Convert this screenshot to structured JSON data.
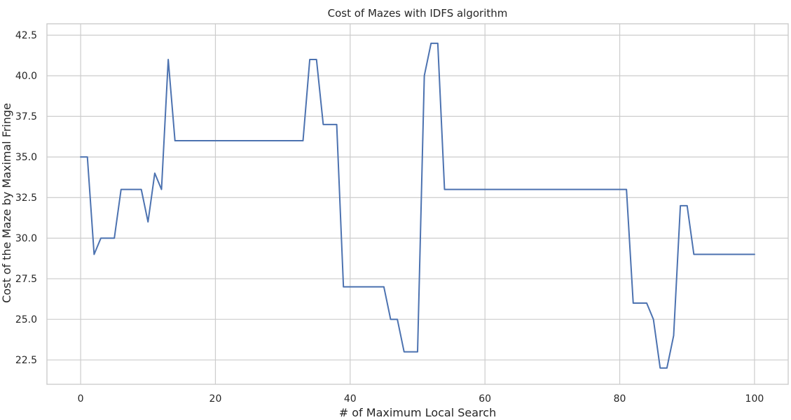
{
  "chart_data": {
    "type": "line",
    "title": "Cost of Mazes with IDFS algorithm",
    "xlabel": "# of Maximum Local Search",
    "ylabel": "Cost of the Maze by Maximal Fringe",
    "xlim": [
      -5,
      105
    ],
    "ylim": [
      21.0,
      43.2
    ],
    "xticks": [
      0,
      20,
      40,
      60,
      80,
      100
    ],
    "xtick_labels": [
      "0",
      "20",
      "40",
      "60",
      "80",
      "100"
    ],
    "yticks": [
      22.5,
      25.0,
      27.5,
      30.0,
      32.5,
      35.0,
      37.5,
      40.0,
      42.5
    ],
    "ytick_labels": [
      "22.5",
      "25.0",
      "27.5",
      "30.0",
      "32.5",
      "35.0",
      "37.5",
      "40.0",
      "42.5"
    ],
    "grid": true,
    "line_color": "#4c72b0",
    "series": [
      {
        "x": [
          0,
          1,
          2,
          3,
          4,
          5,
          6,
          7,
          8,
          9,
          10,
          11,
          12,
          13,
          14,
          15,
          16,
          17,
          18,
          19,
          20,
          21,
          22,
          23,
          24,
          25,
          26,
          27,
          28,
          29,
          30,
          31,
          32,
          33,
          34,
          35,
          36,
          37,
          38,
          39,
          40,
          41,
          42,
          43,
          44,
          45,
          46,
          47,
          48,
          49,
          50,
          51,
          52,
          53,
          54,
          55,
          56,
          57,
          58,
          59,
          60,
          61,
          62,
          63,
          64,
          65,
          66,
          67,
          68,
          69,
          70,
          71,
          72,
          73,
          74,
          75,
          76,
          77,
          78,
          79,
          80,
          81,
          82,
          83,
          84,
          85,
          86,
          87,
          88,
          89,
          90,
          91,
          92,
          93,
          94,
          95,
          96,
          97,
          98,
          99,
          100
        ],
        "y": [
          35,
          35,
          29,
          30,
          30,
          30,
          33,
          33,
          33,
          33,
          31,
          34,
          33,
          41,
          36,
          36,
          36,
          36,
          36,
          36,
          36,
          36,
          36,
          36,
          36,
          36,
          36,
          36,
          36,
          36,
          36,
          36,
          36,
          36,
          41,
          41,
          37,
          37,
          37,
          27,
          27,
          27,
          27,
          27,
          27,
          27,
          25,
          25,
          23,
          23,
          23,
          40,
          42,
          42,
          33,
          33,
          33,
          33,
          33,
          33,
          33,
          33,
          33,
          33,
          33,
          33,
          33,
          33,
          33,
          33,
          33,
          33,
          33,
          33,
          33,
          33,
          33,
          33,
          33,
          33,
          33,
          33,
          26,
          26,
          26,
          25,
          22,
          22,
          24,
          32,
          32,
          29,
          29,
          29,
          29,
          29,
          29,
          29,
          29,
          29,
          29
        ]
      }
    ]
  }
}
